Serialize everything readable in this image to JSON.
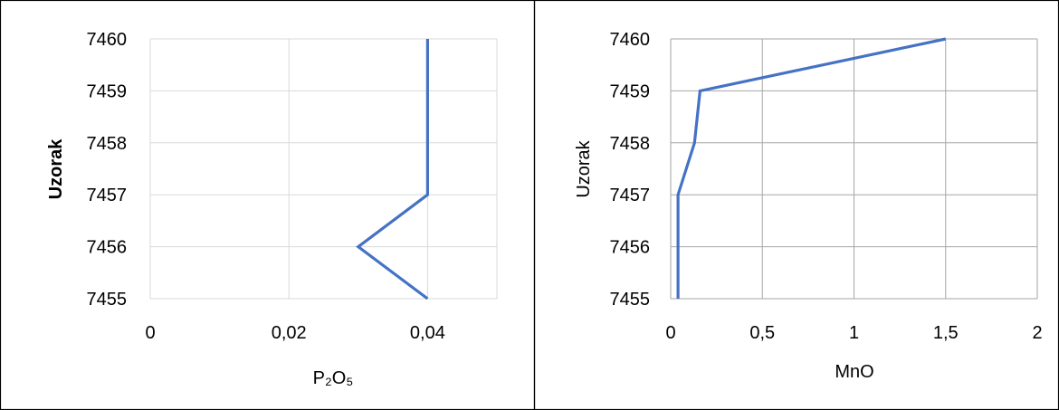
{
  "chart_data": [
    {
      "type": "line",
      "xlabel": "P₂O₅",
      "ylabel": "Uzorak",
      "xlim": [
        0,
        0.05
      ],
      "ylim": [
        7455,
        7460
      ],
      "x_ticks": [
        "0",
        "0,02",
        "0,04"
      ],
      "y_ticks": [
        "7455",
        "7456",
        "7457",
        "7458",
        "7459",
        "7460"
      ],
      "grid": true,
      "series": [
        {
          "color": "#4472c4",
          "x": [
            0.04,
            0.03,
            0.04,
            0.04,
            0.04,
            0.04
          ],
          "y": [
            7455,
            7456,
            7457,
            7458,
            7459,
            7460
          ]
        }
      ]
    },
    {
      "type": "line",
      "xlabel": "MnO",
      "ylabel": "Uzorak",
      "xlim": [
        0,
        2
      ],
      "ylim": [
        7455,
        7460
      ],
      "x_ticks": [
        "0",
        "0,5",
        "1",
        "1,5",
        "2"
      ],
      "y_ticks": [
        "7455",
        "7456",
        "7457",
        "7458",
        "7459",
        "7460"
      ],
      "grid": true,
      "series": [
        {
          "color": "#4472c4",
          "x": [
            0.04,
            0.04,
            0.04,
            0.13,
            0.16,
            1.5
          ],
          "y": [
            7455,
            7456,
            7457,
            7458,
            7459,
            7460
          ]
        }
      ]
    }
  ]
}
